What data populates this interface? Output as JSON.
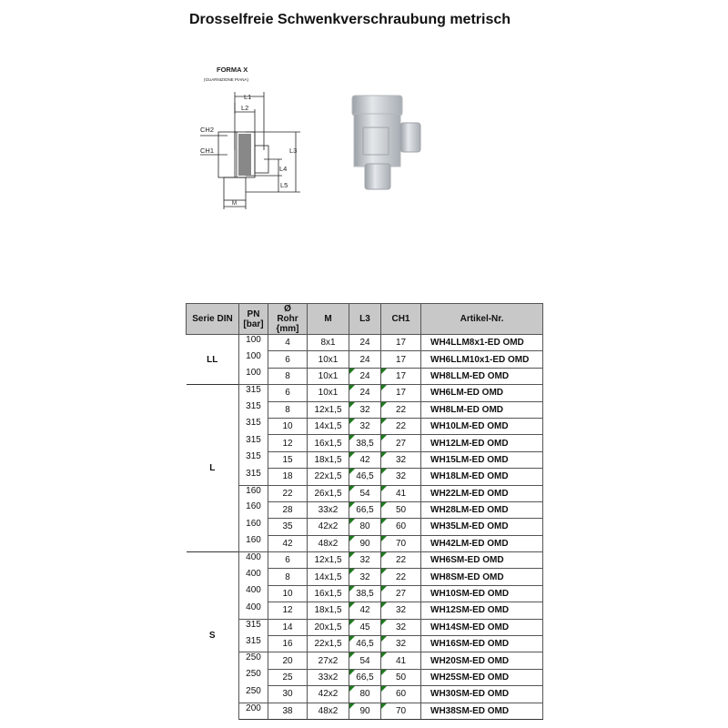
{
  "title": "Drosselfreie Schwenkverschraubung metrisch",
  "drawing": {
    "forma": "FORMA X",
    "subtitle": "(GUARNIZIONE PIANA)",
    "labels": {
      "l1": "L1",
      "l2": "L2",
      "ch2": "CH2",
      "ch1": "CH1",
      "l3": "L3",
      "l4": "L4",
      "l5": "L5",
      "m": "M"
    }
  },
  "colors": {
    "header_bg": "#c8c8c8",
    "marker": "#1e7a1e"
  },
  "table": {
    "headers": [
      "Serie DIN",
      "PN [bar]",
      "Ø Rohr {mm]",
      "M",
      "L3",
      "CH1",
      "Artikel-Nr."
    ],
    "series": [
      {
        "name": "LL",
        "start": 0,
        "count": 3
      },
      {
        "name": "L",
        "start": 3,
        "count": 10
      },
      {
        "name": "S",
        "start": 13,
        "count": 10
      }
    ],
    "pn_groups": [
      {
        "start": 0,
        "count": 3
      },
      {
        "start": 3,
        "count": 6
      },
      {
        "start": 9,
        "count": 4
      },
      {
        "start": 13,
        "count": 4
      },
      {
        "start": 17,
        "count": 2
      },
      {
        "start": 19,
        "count": 3
      },
      {
        "start": 22,
        "count": 1
      }
    ],
    "rows": [
      [
        "100",
        "4",
        "8x1",
        "24",
        "17",
        "WH4LLM8x1-ED OMD"
      ],
      [
        "100",
        "6",
        "10x1",
        "24",
        "17",
        "WH6LLM10x1-ED OMD"
      ],
      [
        "100",
        "8",
        "10x1",
        "24",
        "17",
        "WH8LLM-ED OMD"
      ],
      [
        "315",
        "6",
        "10x1",
        "24",
        "17",
        "WH6LM-ED OMD"
      ],
      [
        "315",
        "8",
        "12x1,5",
        "32",
        "22",
        "WH8LM-ED OMD"
      ],
      [
        "315",
        "10",
        "14x1,5",
        "32",
        "22",
        "WH10LM-ED OMD"
      ],
      [
        "315",
        "12",
        "16x1,5",
        "38,5",
        "27",
        "WH12LM-ED OMD"
      ],
      [
        "315",
        "15",
        "18x1,5",
        "42",
        "32",
        "WH15LM-ED OMD"
      ],
      [
        "315",
        "18",
        "22x1,5",
        "46,5",
        "32",
        "WH18LM-ED OMD"
      ],
      [
        "160",
        "22",
        "26x1,5",
        "54",
        "41",
        "WH22LM-ED OMD"
      ],
      [
        "160",
        "28",
        "33x2",
        "66,5",
        "50",
        "WH28LM-ED OMD"
      ],
      [
        "160",
        "35",
        "42x2",
        "80",
        "60",
        "WH35LM-ED OMD"
      ],
      [
        "160",
        "42",
        "48x2",
        "90",
        "70",
        "WH42LM-ED OMD"
      ],
      [
        "400",
        "6",
        "12x1,5",
        "32",
        "22",
        "WH6SM-ED OMD"
      ],
      [
        "400",
        "8",
        "14x1,5",
        "32",
        "22",
        "WH8SM-ED OMD"
      ],
      [
        "400",
        "10",
        "16x1,5",
        "38,5",
        "27",
        "WH10SM-ED OMD"
      ],
      [
        "400",
        "12",
        "18x1,5",
        "42",
        "32",
        "WH12SM-ED OMD"
      ],
      [
        "315",
        "14",
        "20x1,5",
        "45",
        "32",
        "WH14SM-ED OMD"
      ],
      [
        "315",
        "16",
        "22x1,5",
        "46,5",
        "32",
        "WH16SM-ED OMD"
      ],
      [
        "250",
        "20",
        "27x2",
        "54",
        "41",
        "WH20SM-ED OMD"
      ],
      [
        "250",
        "25",
        "33x2",
        "66,5",
        "50",
        "WH25SM-ED OMD"
      ],
      [
        "250",
        "30",
        "42x2",
        "80",
        "60",
        "WH30SM-ED OMD"
      ],
      [
        "200",
        "38",
        "48x2",
        "90",
        "70",
        "WH38SM-ED OMD"
      ]
    ]
  }
}
